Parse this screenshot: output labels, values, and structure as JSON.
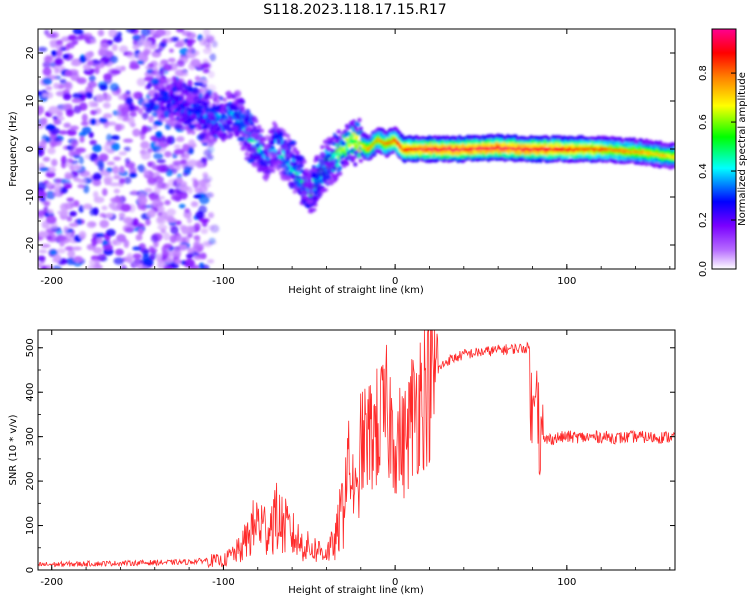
{
  "title": "S118.2023.118.17.15.R17",
  "chart_data": [
    {
      "type": "heatmap",
      "xlabel": "Height of straight line (km)",
      "ylabel": "Frequency (Hz)",
      "xlim": [
        -208,
        163
      ],
      "ylim": [
        -25,
        25
      ],
      "xticks": [
        "-200",
        "-100",
        "0",
        "100"
      ],
      "yticks": [
        "20",
        "10",
        "0",
        "-10",
        "-20"
      ],
      "colorbar": {
        "label": "Normalized spectral amplitude",
        "range": [
          0.0,
          0.98
        ],
        "ticks": [
          "0.0",
          "0.2",
          "0.4",
          "0.6",
          "0.8"
        ],
        "colors": [
          "#ffffff",
          "#b66bff",
          "#7a00ff",
          "#0000ff",
          "#00ffff",
          "#00ff00",
          "#ffff00",
          "#ff7f00",
          "#ff0000",
          "#ff0090"
        ]
      },
      "ridge": {
        "x": [
          -140,
          -130,
          -120,
          -110,
          -100,
          -95,
          -90,
          -85,
          -80,
          -75,
          -70,
          -65,
          -60,
          -55,
          -50,
          -45,
          -40,
          -35,
          -30,
          -25,
          -20,
          -15,
          -10,
          -5,
          0,
          5,
          10,
          20,
          40,
          60,
          80,
          100,
          120,
          140,
          163
        ],
        "freq": [
          12,
          10,
          8,
          7,
          6,
          8,
          6,
          2,
          1,
          -2,
          1,
          -1,
          -3,
          -6,
          -9,
          -6,
          -3,
          -2,
          0,
          2,
          1,
          0,
          2,
          1,
          2,
          0,
          0,
          0,
          0,
          0.3,
          0,
          0,
          0,
          -0.5,
          -1.5
        ],
        "amplitude": [
          0.25,
          0.3,
          0.35,
          0.35,
          0.4,
          0.4,
          0.45,
          0.45,
          0.45,
          0.4,
          0.4,
          0.45,
          0.45,
          0.5,
          0.5,
          0.5,
          0.55,
          0.6,
          0.65,
          0.65,
          0.7,
          0.75,
          0.75,
          0.8,
          0.85,
          0.9,
          0.9,
          0.95,
          0.95,
          0.95,
          0.95,
          0.9,
          0.85,
          0.75,
          0.7
        ]
      },
      "noise_region": {
        "x": [
          -208,
          -105
        ],
        "freq": [
          -25,
          25
        ],
        "amplitude": [
          0.05,
          0.35
        ]
      }
    },
    {
      "type": "line",
      "xlabel": "Height of straight line (km)",
      "ylabel": "SNR (10 * v/v)",
      "xlim": [
        -208,
        163
      ],
      "ylim": [
        0,
        540
      ],
      "xticks": [
        "-200",
        "-100",
        "0",
        "100"
      ],
      "yticks": [
        "500",
        "400",
        "300",
        "200",
        "100",
        "0"
      ],
      "color": "#ff2a2a",
      "series": [
        {
          "x": [
            -208,
            -180,
            -150,
            -120,
            -110,
            -100,
            -95,
            -90,
            -85,
            -80,
            -75,
            -70,
            -65,
            -60,
            -55,
            -50,
            -45,
            -40,
            -35,
            -30,
            -28,
            -25,
            -22,
            -20,
            -15,
            -10,
            -5,
            0,
            5,
            10,
            15,
            20,
            25,
            30,
            40,
            50,
            60,
            70,
            78,
            80,
            82,
            84,
            85,
            90,
            100,
            110,
            120,
            130,
            140,
            150,
            163
          ],
          "y": [
            12,
            14,
            16,
            18,
            22,
            20,
            35,
            45,
            80,
            110,
            90,
            120,
            100,
            80,
            60,
            50,
            45,
            40,
            60,
            150,
            250,
            200,
            150,
            280,
            300,
            320,
            350,
            300,
            280,
            350,
            400,
            420,
            450,
            470,
            485,
            490,
            495,
            498,
            500,
            300,
            510,
            300,
            290,
            295,
            300,
            298,
            300,
            297,
            300,
            298,
            300
          ]
        }
      ]
    }
  ]
}
